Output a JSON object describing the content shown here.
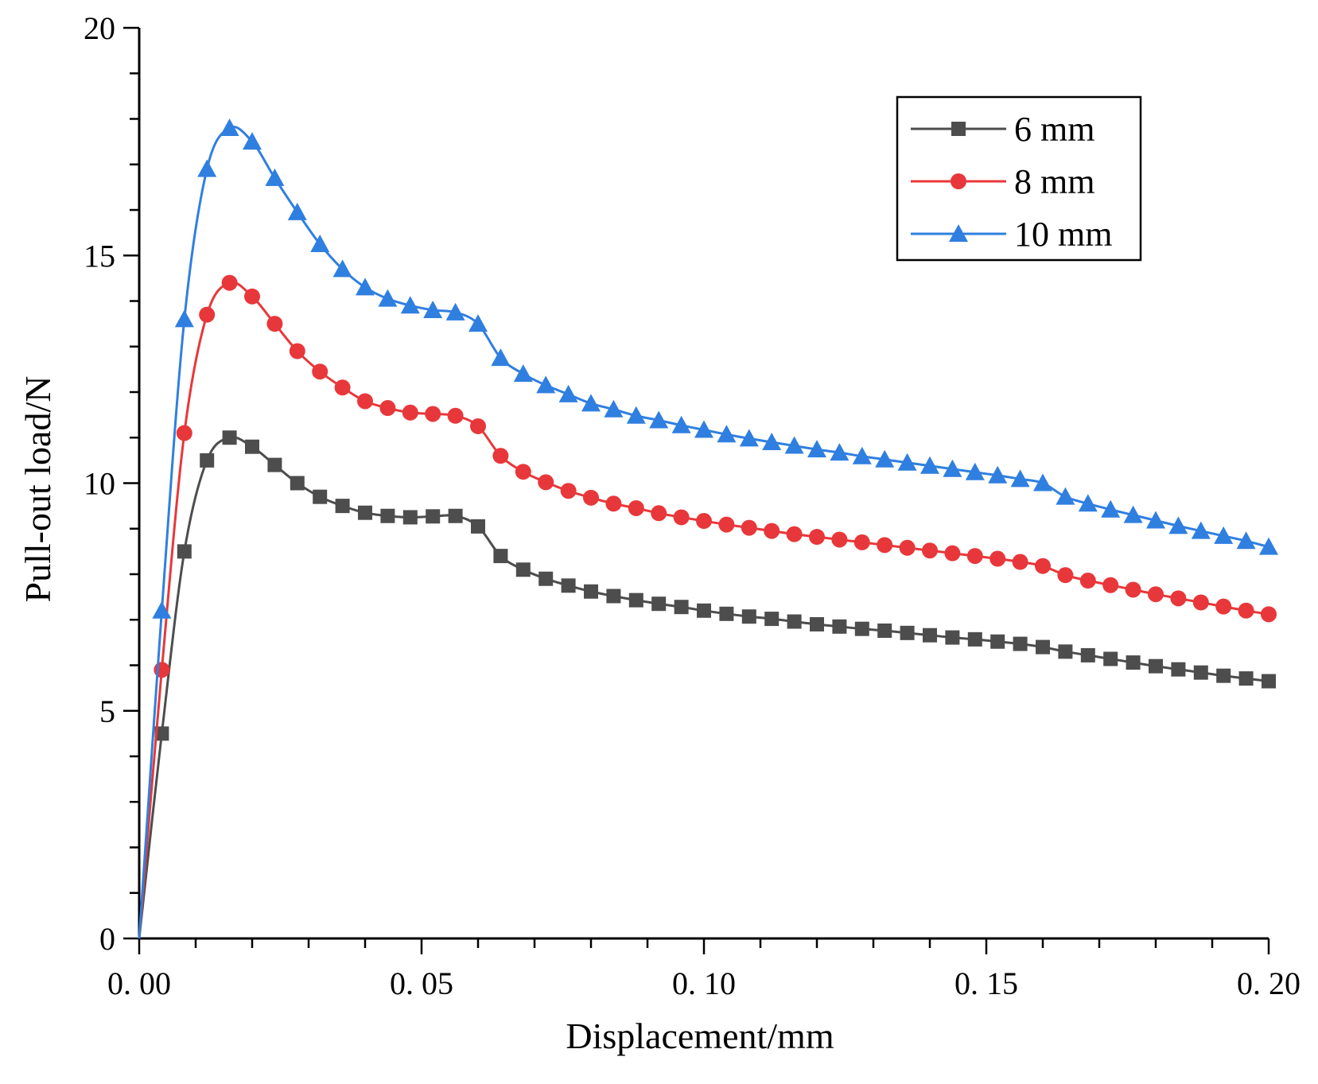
{
  "chart_data": {
    "type": "line",
    "xlabel": "Displacement/mm",
    "ylabel": "Pull-out load/N",
    "xlim": [
      0,
      0.2
    ],
    "ylim": [
      0,
      20
    ],
    "xticks": [
      "0. 00",
      "0. 05",
      "0. 10",
      "0. 15",
      "0. 20"
    ],
    "yticks": [
      "0",
      "5",
      "10",
      "15",
      "20"
    ],
    "legend_position": "top-right",
    "grid": false,
    "x": [
      0.0,
      0.004,
      0.008,
      0.012,
      0.016,
      0.02,
      0.024,
      0.028,
      0.032,
      0.036,
      0.04,
      0.044,
      0.048,
      0.052,
      0.056,
      0.06,
      0.064,
      0.068,
      0.072,
      0.076,
      0.08,
      0.084,
      0.088,
      0.092,
      0.096,
      0.1,
      0.104,
      0.108,
      0.112,
      0.116,
      0.12,
      0.124,
      0.128,
      0.132,
      0.136,
      0.14,
      0.144,
      0.148,
      0.152,
      0.156,
      0.16,
      0.164,
      0.168,
      0.172,
      0.176,
      0.18,
      0.184,
      0.188,
      0.192,
      0.196,
      0.2
    ],
    "series": [
      {
        "name": "6 mm",
        "color": "#4d4d4d",
        "marker": "square",
        "values": [
          0.0,
          4.5,
          8.5,
          10.5,
          11.0,
          10.8,
          10.4,
          10.0,
          9.7,
          9.5,
          9.35,
          9.28,
          9.25,
          9.27,
          9.28,
          9.05,
          8.4,
          8.1,
          7.9,
          7.75,
          7.62,
          7.52,
          7.43,
          7.35,
          7.28,
          7.2,
          7.13,
          7.07,
          7.02,
          6.96,
          6.9,
          6.85,
          6.8,
          6.76,
          6.71,
          6.66,
          6.61,
          6.57,
          6.52,
          6.47,
          6.4,
          6.3,
          6.22,
          6.14,
          6.06,
          5.98,
          5.91,
          5.84,
          5.77,
          5.71,
          5.65
        ]
      },
      {
        "name": "8 mm",
        "color": "#e8373a",
        "marker": "circle",
        "values": [
          0.0,
          5.9,
          11.1,
          13.7,
          14.4,
          14.1,
          13.5,
          12.9,
          12.45,
          12.1,
          11.8,
          11.65,
          11.55,
          11.52,
          11.48,
          11.25,
          10.6,
          10.25,
          10.02,
          9.83,
          9.68,
          9.55,
          9.45,
          9.34,
          9.25,
          9.17,
          9.09,
          9.02,
          8.95,
          8.88,
          8.82,
          8.76,
          8.7,
          8.64,
          8.58,
          8.52,
          8.46,
          8.4,
          8.34,
          8.27,
          8.18,
          7.98,
          7.86,
          7.76,
          7.66,
          7.56,
          7.47,
          7.38,
          7.29,
          7.2,
          7.12
        ]
      },
      {
        "name": "10 mm",
        "color": "#2f7fe0",
        "marker": "triangle",
        "values": [
          0.0,
          7.2,
          13.6,
          16.9,
          17.8,
          17.5,
          16.7,
          15.95,
          15.25,
          14.7,
          14.3,
          14.05,
          13.9,
          13.8,
          13.75,
          13.5,
          12.75,
          12.4,
          12.15,
          11.95,
          11.75,
          11.62,
          11.48,
          11.38,
          11.27,
          11.17,
          11.07,
          10.98,
          10.9,
          10.82,
          10.74,
          10.67,
          10.59,
          10.52,
          10.45,
          10.38,
          10.31,
          10.24,
          10.17,
          10.09,
          10.0,
          9.7,
          9.55,
          9.42,
          9.3,
          9.18,
          9.06,
          8.95,
          8.84,
          8.73,
          8.6
        ]
      }
    ]
  }
}
